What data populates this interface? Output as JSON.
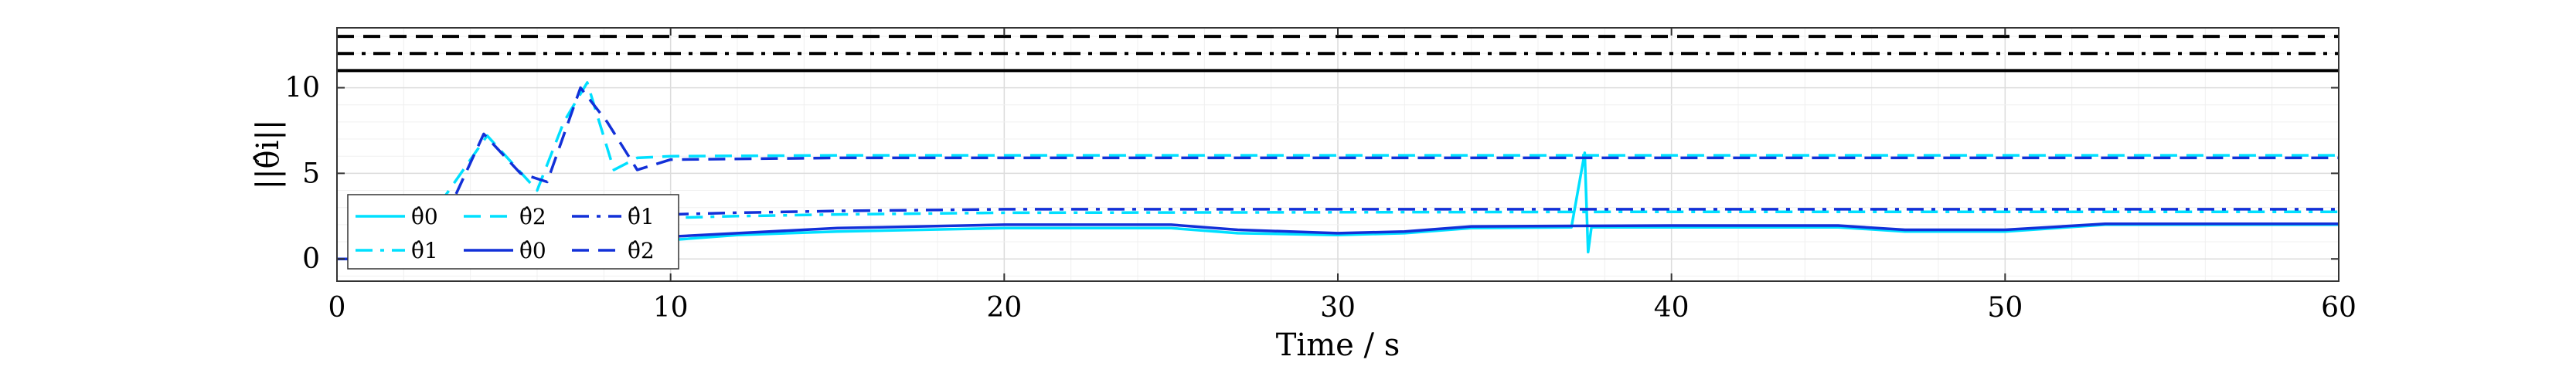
{
  "chart_data": {
    "type": "line",
    "xlabel": "Time / s",
    "ylabel": "||θ̂i||",
    "xlim": [
      0,
      60
    ],
    "ylim": [
      -1.3,
      13.5
    ],
    "xticks": [
      0,
      10,
      20,
      30,
      40,
      50,
      60
    ],
    "yticks": [
      0,
      5,
      10
    ],
    "grid": true,
    "legend_position": "lower-left",
    "reference_lines": [
      {
        "y": 13.0,
        "style": "dashed",
        "color": "#000000"
      },
      {
        "y": 12.0,
        "style": "dashdot",
        "color": "#000000"
      },
      {
        "y": 11.0,
        "style": "solid",
        "color": "#000000"
      }
    ],
    "series": [
      {
        "name": "θ̂0",
        "color": "#00e0ff",
        "style": "solid",
        "x": [
          0,
          8.2,
          9.0,
          9.5,
          10,
          12,
          15,
          20,
          25,
          27,
          30,
          32,
          34,
          37,
          37.4,
          37.5,
          37.6,
          40,
          45,
          47,
          50,
          53,
          60
        ],
        "y": [
          0,
          0,
          0.3,
          1.0,
          1.1,
          1.4,
          1.6,
          1.8,
          1.8,
          1.5,
          1.4,
          1.5,
          1.8,
          1.85,
          6.2,
          0.4,
          1.85,
          1.85,
          1.85,
          1.6,
          1.6,
          2.0,
          2.0
        ]
      },
      {
        "name": "θ̂1",
        "color": "#00e0ff",
        "style": "dashdot",
        "x": [
          0,
          8.2,
          9.5,
          10,
          12,
          15,
          20,
          40,
          60
        ],
        "y": [
          0,
          0,
          2.2,
          2.4,
          2.5,
          2.6,
          2.7,
          2.75,
          2.75
        ]
      },
      {
        "name": "θ̂2",
        "color": "#00e0ff",
        "style": "dashed",
        "x": [
          0,
          2,
          3,
          4.5,
          6,
          6.8,
          7.5,
          8.3,
          9,
          10,
          15,
          30,
          45,
          60
        ],
        "y": [
          0,
          0,
          3.0,
          7.2,
          4.0,
          8.0,
          10.3,
          5.2,
          5.9,
          6.0,
          6.05,
          6.05,
          6.05,
          6.05
        ]
      },
      {
        "name": "θ̂0",
        "color": "#1230d8",
        "style": "solid",
        "x": [
          0,
          8.2,
          10,
          12,
          15,
          20,
          25,
          27,
          30,
          32,
          34,
          40,
          45,
          47,
          50,
          53,
          60
        ],
        "y": [
          0,
          0,
          1.3,
          1.5,
          1.8,
          2.0,
          2.0,
          1.7,
          1.5,
          1.6,
          1.9,
          1.95,
          1.95,
          1.7,
          1.7,
          2.05,
          2.05
        ]
      },
      {
        "name": "θ̂1",
        "color": "#1230d8",
        "style": "dashdot",
        "x": [
          0,
          8.2,
          8.6,
          10,
          12,
          15,
          20,
          40,
          60
        ],
        "y": [
          0,
          0,
          2.3,
          2.6,
          2.7,
          2.8,
          2.9,
          2.9,
          2.9
        ]
      },
      {
        "name": "θ̂2",
        "color": "#1230d8",
        "style": "dashed",
        "x": [
          0,
          2.5,
          3.5,
          4.4,
          5.5,
          6.3,
          7.3,
          8.1,
          9,
          10,
          15,
          60
        ],
        "y": [
          0,
          0,
          3.5,
          7.3,
          5.0,
          4.5,
          10.0,
          8.0,
          5.2,
          5.8,
          5.9,
          5.9
        ]
      }
    ]
  }
}
